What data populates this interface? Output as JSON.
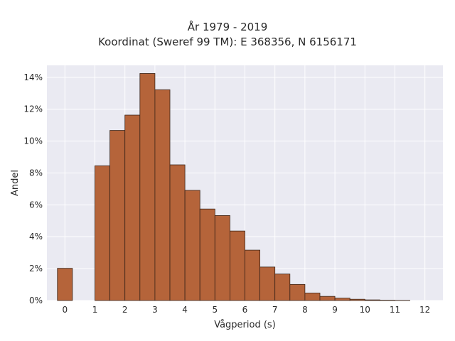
{
  "chart_data": {
    "type": "bar",
    "title": "År 1979 - 2019",
    "subtitle": "Koordinat (Sweref 99 TM): E 368356, N 6156171",
    "xlabel": "Vågperiod (s)",
    "ylabel": "Andel",
    "xlim": [
      -0.6,
      12.6
    ],
    "ylim": [
      0,
      0.1475
    ],
    "xticks": [
      0,
      1,
      2,
      3,
      4,
      5,
      6,
      7,
      8,
      9,
      10,
      11,
      12
    ],
    "xtick_labels": [
      "0",
      "1",
      "2",
      "3",
      "4",
      "5",
      "6",
      "7",
      "8",
      "9",
      "10",
      "11",
      "12"
    ],
    "yticks": [
      0,
      0.02,
      0.04,
      0.06,
      0.08,
      0.1,
      0.12,
      0.14
    ],
    "ytick_labels": [
      "0%",
      "2%",
      "4%",
      "6%",
      "8%",
      "10%",
      "12%",
      "14%"
    ],
    "grid": true,
    "bar_width": 0.5,
    "bars": [
      {
        "x": 0.0,
        "value": 0.0202
      },
      {
        "x": 1.25,
        "value": 0.0845
      },
      {
        "x": 1.75,
        "value": 0.1067
      },
      {
        "x": 2.25,
        "value": 0.1163
      },
      {
        "x": 2.75,
        "value": 0.1424
      },
      {
        "x": 3.25,
        "value": 0.1322
      },
      {
        "x": 3.75,
        "value": 0.0851
      },
      {
        "x": 4.25,
        "value": 0.0691
      },
      {
        "x": 4.75,
        "value": 0.0574
      },
      {
        "x": 5.25,
        "value": 0.0533
      },
      {
        "x": 5.75,
        "value": 0.0436
      },
      {
        "x": 6.25,
        "value": 0.0316
      },
      {
        "x": 6.75,
        "value": 0.021
      },
      {
        "x": 7.25,
        "value": 0.0166
      },
      {
        "x": 7.75,
        "value": 0.0101
      },
      {
        "x": 8.25,
        "value": 0.0047
      },
      {
        "x": 8.75,
        "value": 0.0026
      },
      {
        "x": 9.25,
        "value": 0.0015
      },
      {
        "x": 9.75,
        "value": 0.0008
      },
      {
        "x": 10.25,
        "value": 0.0004
      },
      {
        "x": 10.75,
        "value": 0.0002
      },
      {
        "x": 11.25,
        "value": 0.0001
      }
    ],
    "colors": {
      "bar_fill": "#b5643a",
      "bar_edge": "#3a2418",
      "plot_background": "#eaeaf2",
      "grid": "#ffffff"
    }
  }
}
